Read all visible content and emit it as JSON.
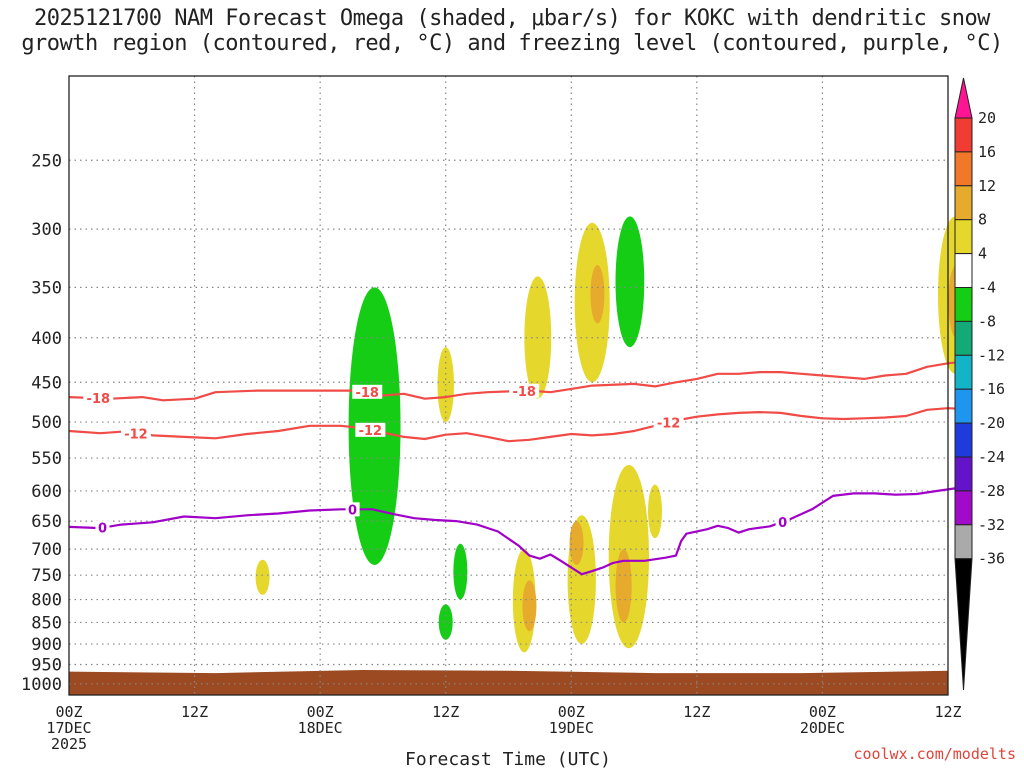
{
  "title": {
    "line1": "2025121700 NAM Forecast Omega (shaded, μbar/s) for KOKC with dendritic snow",
    "line2": "growth region (contoured, red, °C) and freezing level (contoured, purple, °C)"
  },
  "credit": "coolwx.com/modelts",
  "chart_data": {
    "type": "time-height cross section",
    "x_axis": {
      "title": "Forecast Time (UTC)",
      "range_hours": [
        0,
        84
      ],
      "ticks": [
        {
          "hour": 0,
          "labels": [
            "00Z",
            "17DEC",
            "2025"
          ]
        },
        {
          "hour": 12,
          "labels": [
            "12Z"
          ]
        },
        {
          "hour": 24,
          "labels": [
            "00Z",
            "18DEC"
          ]
        },
        {
          "hour": 36,
          "labels": [
            "12Z"
          ]
        },
        {
          "hour": 48,
          "labels": [
            "00Z",
            "19DEC"
          ]
        },
        {
          "hour": 60,
          "labels": [
            "12Z"
          ]
        },
        {
          "hour": 72,
          "labels": [
            "00Z",
            "20DEC"
          ]
        },
        {
          "hour": 84,
          "labels": [
            "12Z"
          ]
        }
      ]
    },
    "y_axis": {
      "units": "hPa",
      "scale": "log",
      "range": [
        1030,
        200
      ],
      "ticks": [
        "250",
        "300",
        "350",
        "400",
        "450",
        "500",
        "550",
        "600",
        "650",
        "700",
        "750",
        "800",
        "850",
        "900",
        "950",
        "1000"
      ]
    },
    "colorbar": {
      "labels": [
        "20",
        "16",
        "12",
        "8",
        "4",
        "-4",
        "-8",
        "-12",
        "-16",
        "-20",
        "-24",
        "-28",
        "-32",
        "-36"
      ],
      "colors": [
        "#ff1493",
        "#f03c32",
        "#f07828",
        "#e6aa2d",
        "#e6d72d",
        "#ffffff",
        "#14cd14",
        "#14aa78",
        "#14b4c8",
        "#1e96f0",
        "#1e3cdc",
        "#6414c8",
        "#a00ac8",
        "#aaaaaa",
        "#000000"
      ]
    },
    "terrain": {
      "color": "#9c4a22",
      "surface_hpa": [
        968,
        972,
        964,
        966,
        972,
        972,
        966
      ]
    },
    "contours": [
      {
        "name": "-18 isotherm",
        "color": "#f04b46",
        "label": "-18",
        "label_hours": [
          2.8,
          28.5,
          43.5
        ],
        "points": [
          [
            0,
            468
          ],
          [
            4,
            470
          ],
          [
            7,
            468
          ],
          [
            9,
            472
          ],
          [
            12,
            470
          ],
          [
            14,
            462
          ],
          [
            18,
            460
          ],
          [
            22,
            460
          ],
          [
            26,
            460
          ],
          [
            28,
            460
          ],
          [
            30,
            466
          ],
          [
            32,
            464
          ],
          [
            34,
            470
          ],
          [
            36,
            468
          ],
          [
            38,
            464
          ],
          [
            40,
            462
          ],
          [
            44,
            460
          ],
          [
            46,
            462
          ],
          [
            48,
            458
          ],
          [
            50,
            454
          ],
          [
            54,
            452
          ],
          [
            56,
            455
          ],
          [
            58,
            450
          ],
          [
            60,
            446
          ],
          [
            62,
            440
          ],
          [
            64,
            440
          ],
          [
            66,
            438
          ],
          [
            68,
            438
          ],
          [
            70,
            440
          ],
          [
            72,
            442
          ],
          [
            74,
            444
          ],
          [
            76,
            446
          ],
          [
            78,
            442
          ],
          [
            80,
            440
          ],
          [
            82,
            432
          ],
          [
            84,
            428
          ],
          [
            85.5,
            426
          ]
        ]
      },
      {
        "name": "-12 isotherm",
        "color": "#f04b46",
        "label": "-12",
        "label_hours": [
          6.4,
          28.8,
          57.3
        ],
        "points": [
          [
            0,
            512
          ],
          [
            3,
            515
          ],
          [
            5,
            513
          ],
          [
            8,
            518
          ],
          [
            11,
            520
          ],
          [
            14,
            522
          ],
          [
            17,
            516
          ],
          [
            20,
            512
          ],
          [
            23,
            505
          ],
          [
            26,
            505
          ],
          [
            28,
            508
          ],
          [
            30,
            514
          ],
          [
            32,
            520
          ],
          [
            34,
            523
          ],
          [
            36,
            517
          ],
          [
            38,
            515
          ],
          [
            40,
            520
          ],
          [
            42,
            526
          ],
          [
            44,
            524
          ],
          [
            46,
            520
          ],
          [
            48,
            516
          ],
          [
            50,
            518
          ],
          [
            52,
            516
          ],
          [
            54,
            512
          ],
          [
            56,
            505
          ],
          [
            58,
            498
          ],
          [
            60,
            493
          ],
          [
            62,
            490
          ],
          [
            64,
            488
          ],
          [
            66,
            487
          ],
          [
            68,
            488
          ],
          [
            70,
            492
          ],
          [
            72,
            495
          ],
          [
            74,
            496
          ],
          [
            76,
            495
          ],
          [
            78,
            494
          ],
          [
            80,
            492
          ],
          [
            82,
            484
          ],
          [
            84,
            482
          ],
          [
            85.5,
            483
          ]
        ]
      },
      {
        "name": "0 freezing level",
        "color": "#a000c8",
        "label": "0",
        "label_hours": [
          3.2,
          27.1,
          68.2
        ],
        "points": [
          [
            0,
            660
          ],
          [
            3,
            662
          ],
          [
            5,
            656
          ],
          [
            8,
            652
          ],
          [
            11,
            642
          ],
          [
            14,
            645
          ],
          [
            17,
            640
          ],
          [
            20,
            637
          ],
          [
            23,
            632
          ],
          [
            26,
            630
          ],
          [
            29,
            630
          ],
          [
            31,
            638
          ],
          [
            33,
            645
          ],
          [
            35,
            648
          ],
          [
            37,
            650
          ],
          [
            39,
            656
          ],
          [
            41,
            668
          ],
          [
            43,
            694
          ],
          [
            44,
            712
          ],
          [
            45,
            718
          ],
          [
            46,
            710
          ],
          [
            47,
            722
          ],
          [
            48,
            735
          ],
          [
            49,
            748
          ],
          [
            50,
            742
          ],
          [
            51,
            735
          ],
          [
            52,
            726
          ],
          [
            53,
            722
          ],
          [
            55,
            722
          ],
          [
            57,
            716
          ],
          [
            58,
            712
          ],
          [
            58.5,
            685
          ],
          [
            59,
            672
          ],
          [
            61,
            664
          ],
          [
            62,
            658
          ],
          [
            63,
            662
          ],
          [
            64,
            670
          ],
          [
            65,
            664
          ],
          [
            67,
            659
          ],
          [
            69,
            646
          ],
          [
            71,
            630
          ],
          [
            73,
            608
          ],
          [
            75,
            604
          ],
          [
            77,
            604
          ],
          [
            79,
            606
          ],
          [
            81,
            605
          ],
          [
            83,
            600
          ],
          [
            85.5,
            594
          ]
        ]
      }
    ],
    "shaded_regions": [
      {
        "color": "#14cd14",
        "hour": 29.2,
        "hpa": [
          350,
          730
        ]
      },
      {
        "color": "#14cd14",
        "hour": 36.0,
        "hpa": [
          810,
          890
        ]
      },
      {
        "color": "#14cd14",
        "hour": 37.4,
        "hpa": [
          690,
          800
        ]
      },
      {
        "color": "#14cd14",
        "hour": 53.6,
        "hpa": [
          290,
          410
        ]
      },
      {
        "color": "#e6d72d",
        "hour": 18.5,
        "hpa": [
          720,
          790
        ]
      },
      {
        "color": "#e6d72d",
        "hour": 36.0,
        "hpa": [
          410,
          500
        ]
      },
      {
        "color": "#e6d72d",
        "hour": 44.8,
        "hpa": [
          340,
          470
        ]
      },
      {
        "color": "#e6d72d",
        "hour": 50.0,
        "hpa": [
          295,
          450
        ]
      },
      {
        "color": "#e6d72d",
        "hour": 43.5,
        "hpa": [
          700,
          920
        ]
      },
      {
        "color": "#e6d72d",
        "hour": 49.0,
        "hpa": [
          640,
          900
        ]
      },
      {
        "color": "#e6d72d",
        "hour": 53.5,
        "hpa": [
          560,
          910
        ]
      },
      {
        "color": "#e6d72d",
        "hour": 56.0,
        "hpa": [
          590,
          680
        ]
      },
      {
        "color": "#e6d72d",
        "hour": 84.7,
        "hpa": [
          290,
          440
        ]
      },
      {
        "color": "#e6aa2d",
        "hour": 50.5,
        "hpa": [
          330,
          385
        ]
      },
      {
        "color": "#e6aa2d",
        "hour": 44.0,
        "hpa": [
          760,
          870
        ]
      },
      {
        "color": "#e6aa2d",
        "hour": 53.0,
        "hpa": [
          700,
          850
        ]
      },
      {
        "color": "#e6aa2d",
        "hour": 48.5,
        "hpa": [
          650,
          730
        ]
      },
      {
        "color": "#e6aa2d",
        "hour": 84.8,
        "hpa": [
          330,
          400
        ]
      }
    ]
  }
}
